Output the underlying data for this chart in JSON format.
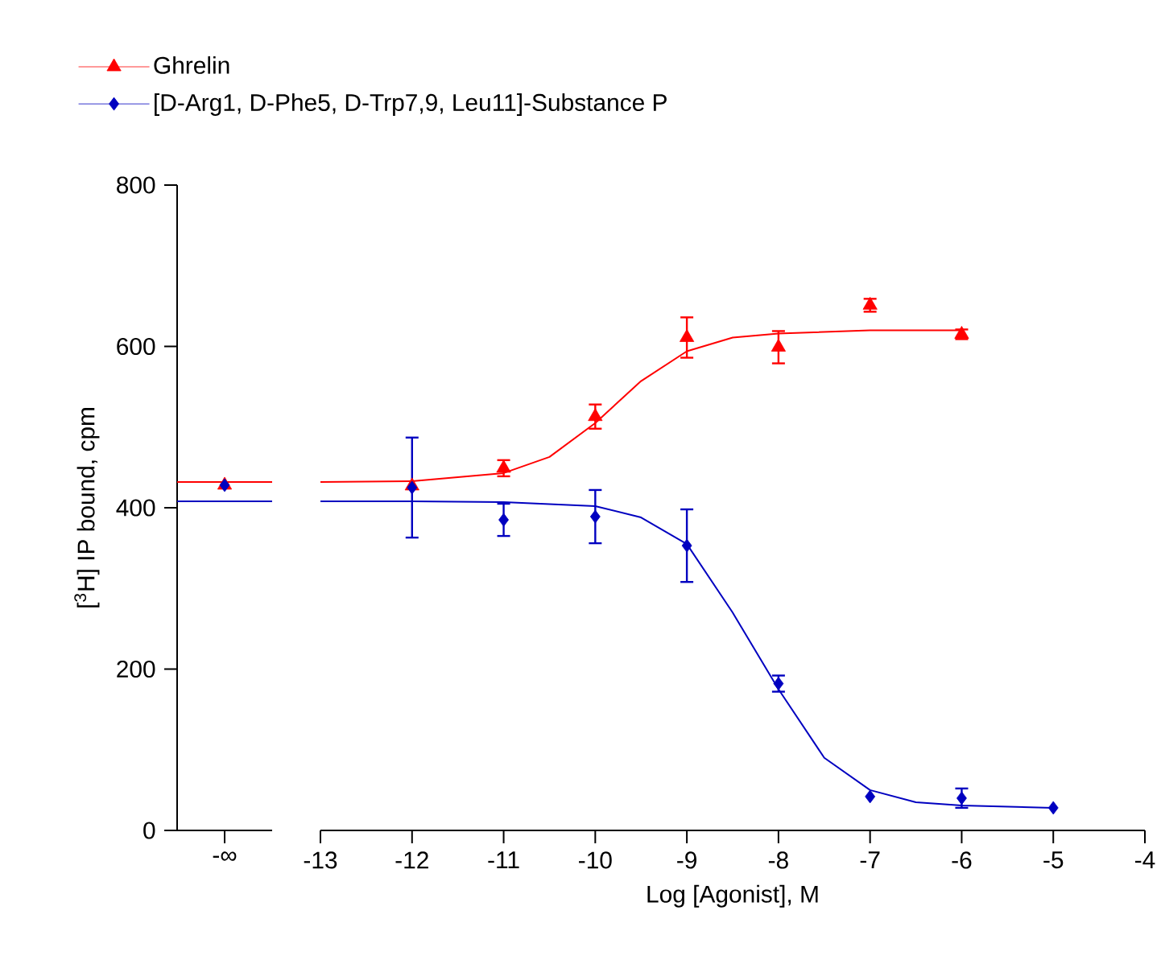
{
  "chart_data": [
    {
      "type": "scatter",
      "ylabel": "[$^{3}$H] IP bound, cpm",
      "categories": [
        "-∞"
      ],
      "ylim": [
        0,
        800
      ],
      "yticks": [
        0,
        200,
        400,
        600,
        800
      ],
      "ref_lines": [
        {
          "axis": "y",
          "value": 432,
          "color": "#ff0000"
        },
        {
          "axis": "y",
          "value": 408,
          "color": "#0000c0"
        }
      ],
      "series": [
        {
          "color": "#ff0000",
          "values": [
            428
          ],
          "marker": "triangle"
        },
        {
          "color": "#0000c0",
          "values": [
            428
          ],
          "marker": "diamond"
        }
      ]
    },
    {
      "type": "scatter",
      "xlabel": "Log [Agonist], M",
      "xlim": [
        -13,
        -4
      ],
      "xticks": [
        -13,
        -12,
        -11,
        -10,
        -9,
        -8,
        -7,
        -6,
        -5,
        -4
      ],
      "ylim": [
        0,
        800
      ],
      "yticks": [
        0,
        200,
        400,
        600,
        800
      ],
      "tick_labels": "x",
      "legend": "top left",
      "series": [
        {
          "type": "line",
          "color": "#ff0000",
          "x": [
            -13,
            -12,
            -11,
            -10.5,
            -10,
            -9.5,
            -9,
            -8.5,
            -8,
            -7,
            -6
          ],
          "values": [
            432,
            433,
            443,
            463,
            505,
            557,
            594,
            611,
            616,
            620,
            620
          ],
          "marker": "none"
        },
        {
          "type": "line",
          "color": "#0000c0",
          "x": [
            -13,
            -12,
            -11,
            -10,
            -9.5,
            -9,
            -8.5,
            -8,
            -7.5,
            -7,
            -6.5,
            -6,
            -5
          ],
          "values": [
            408,
            408,
            407,
            402,
            388,
            355,
            270,
            175,
            90,
            50,
            35,
            31,
            28
          ],
          "marker": "none"
        },
        {
          "name": "Ghrelin",
          "color": "#ff0000",
          "x": [
            -12,
            -11,
            -10,
            -9,
            -8,
            -7,
            -6
          ],
          "values": [
            427,
            449,
            513,
            611,
            599,
            651,
            615
          ],
          "errors": [
            null,
            10,
            15,
            25,
            20,
            8,
            6
          ],
          "marker": "triangle"
        },
        {
          "name": "[D-Arg1, D-Phe5, D-Trp7,9, Leu11]-Substance P",
          "color": "#0000c0",
          "x": [
            -12,
            -11,
            -10,
            -9,
            -8,
            -7,
            -6,
            -5
          ],
          "values": [
            425,
            385,
            389,
            353,
            182,
            42,
            40,
            28
          ],
          "errors": [
            62,
            20,
            33,
            45,
            10,
            null,
            12,
            null
          ],
          "marker": "diamond"
        }
      ]
    }
  ]
}
